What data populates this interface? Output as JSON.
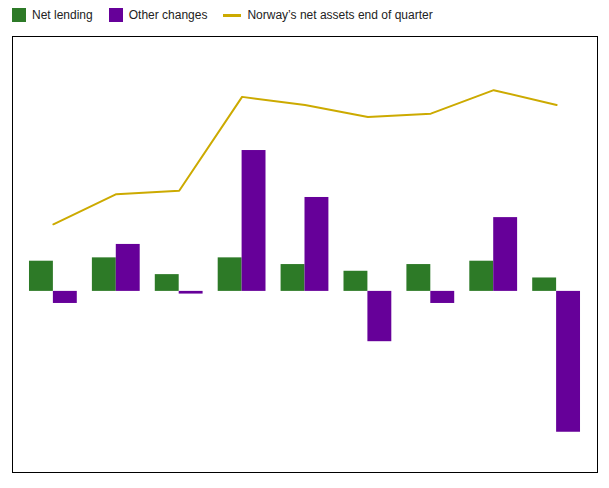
{
  "chart_data": {
    "type": "bar",
    "categories": [
      null,
      null,
      null,
      null,
      null,
      null,
      null,
      null,
      null
    ],
    "series": [
      {
        "name": "Net lending",
        "type": "bar",
        "color": "#2d7a27",
        "values": [
          45,
          50,
          25,
          50,
          40,
          30,
          40,
          45,
          20
        ]
      },
      {
        "name": "Other changes",
        "type": "bar",
        "color": "#660099",
        "values": [
          -18,
          70,
          -4,
          210,
          140,
          -75,
          -18,
          110,
          -210
        ]
      },
      {
        "name": "Norway’s net assets end of quarter",
        "type": "line",
        "color": "#ccaa00",
        "values": [
          100,
          145,
          150,
          290,
          278,
          260,
          265,
          300,
          278
        ]
      }
    ],
    "ylim": [
      -270,
      380
    ],
    "yticks": [],
    "tick_labels": false,
    "grid": false,
    "legend": "upper left"
  }
}
